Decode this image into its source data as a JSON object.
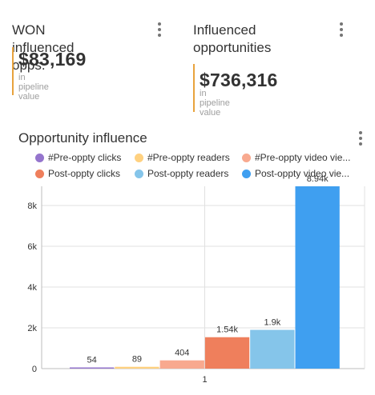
{
  "kpi1": {
    "title": "WON influenced opps.",
    "value": "$83,169",
    "subtitle": "in pipeline value"
  },
  "kpi2": {
    "title_line1": "Influenced",
    "title_line2": "opportunities",
    "value": "$736,316",
    "subtitle": "in pipeline value"
  },
  "chart_title": "Opportunity influence",
  "colors": {
    "accent_bar": "#e8a33d"
  },
  "chart_data": {
    "type": "bar",
    "categories": [
      "1"
    ],
    "series": [
      {
        "name": "#Pre-oppty clicks",
        "values": [
          54
        ],
        "label": "54",
        "color": "#9575cd"
      },
      {
        "name": "#Pre-oppty readers",
        "values": [
          89
        ],
        "label": "89",
        "color": "#ffd180"
      },
      {
        "name": "#Pre-oppty video vie...",
        "values": [
          404
        ],
        "label": "404",
        "color": "#f8a98f"
      },
      {
        "name": "Post-oppty clicks",
        "values": [
          1540
        ],
        "label": "1.54k",
        "color": "#ef7f5c"
      },
      {
        "name": "Post-oppty readers",
        "values": [
          1900
        ],
        "label": "1.9k",
        "color": "#85c5ea"
      },
      {
        "name": "Post-oppty video vie...",
        "values": [
          8940
        ],
        "label": "8.94k",
        "color": "#3f9ff0"
      }
    ],
    "y_ticks": [
      "0",
      "2k",
      "4k",
      "6k",
      "8k"
    ],
    "ylim": [
      0,
      8940
    ],
    "grid": true,
    "legend_position": "top"
  }
}
